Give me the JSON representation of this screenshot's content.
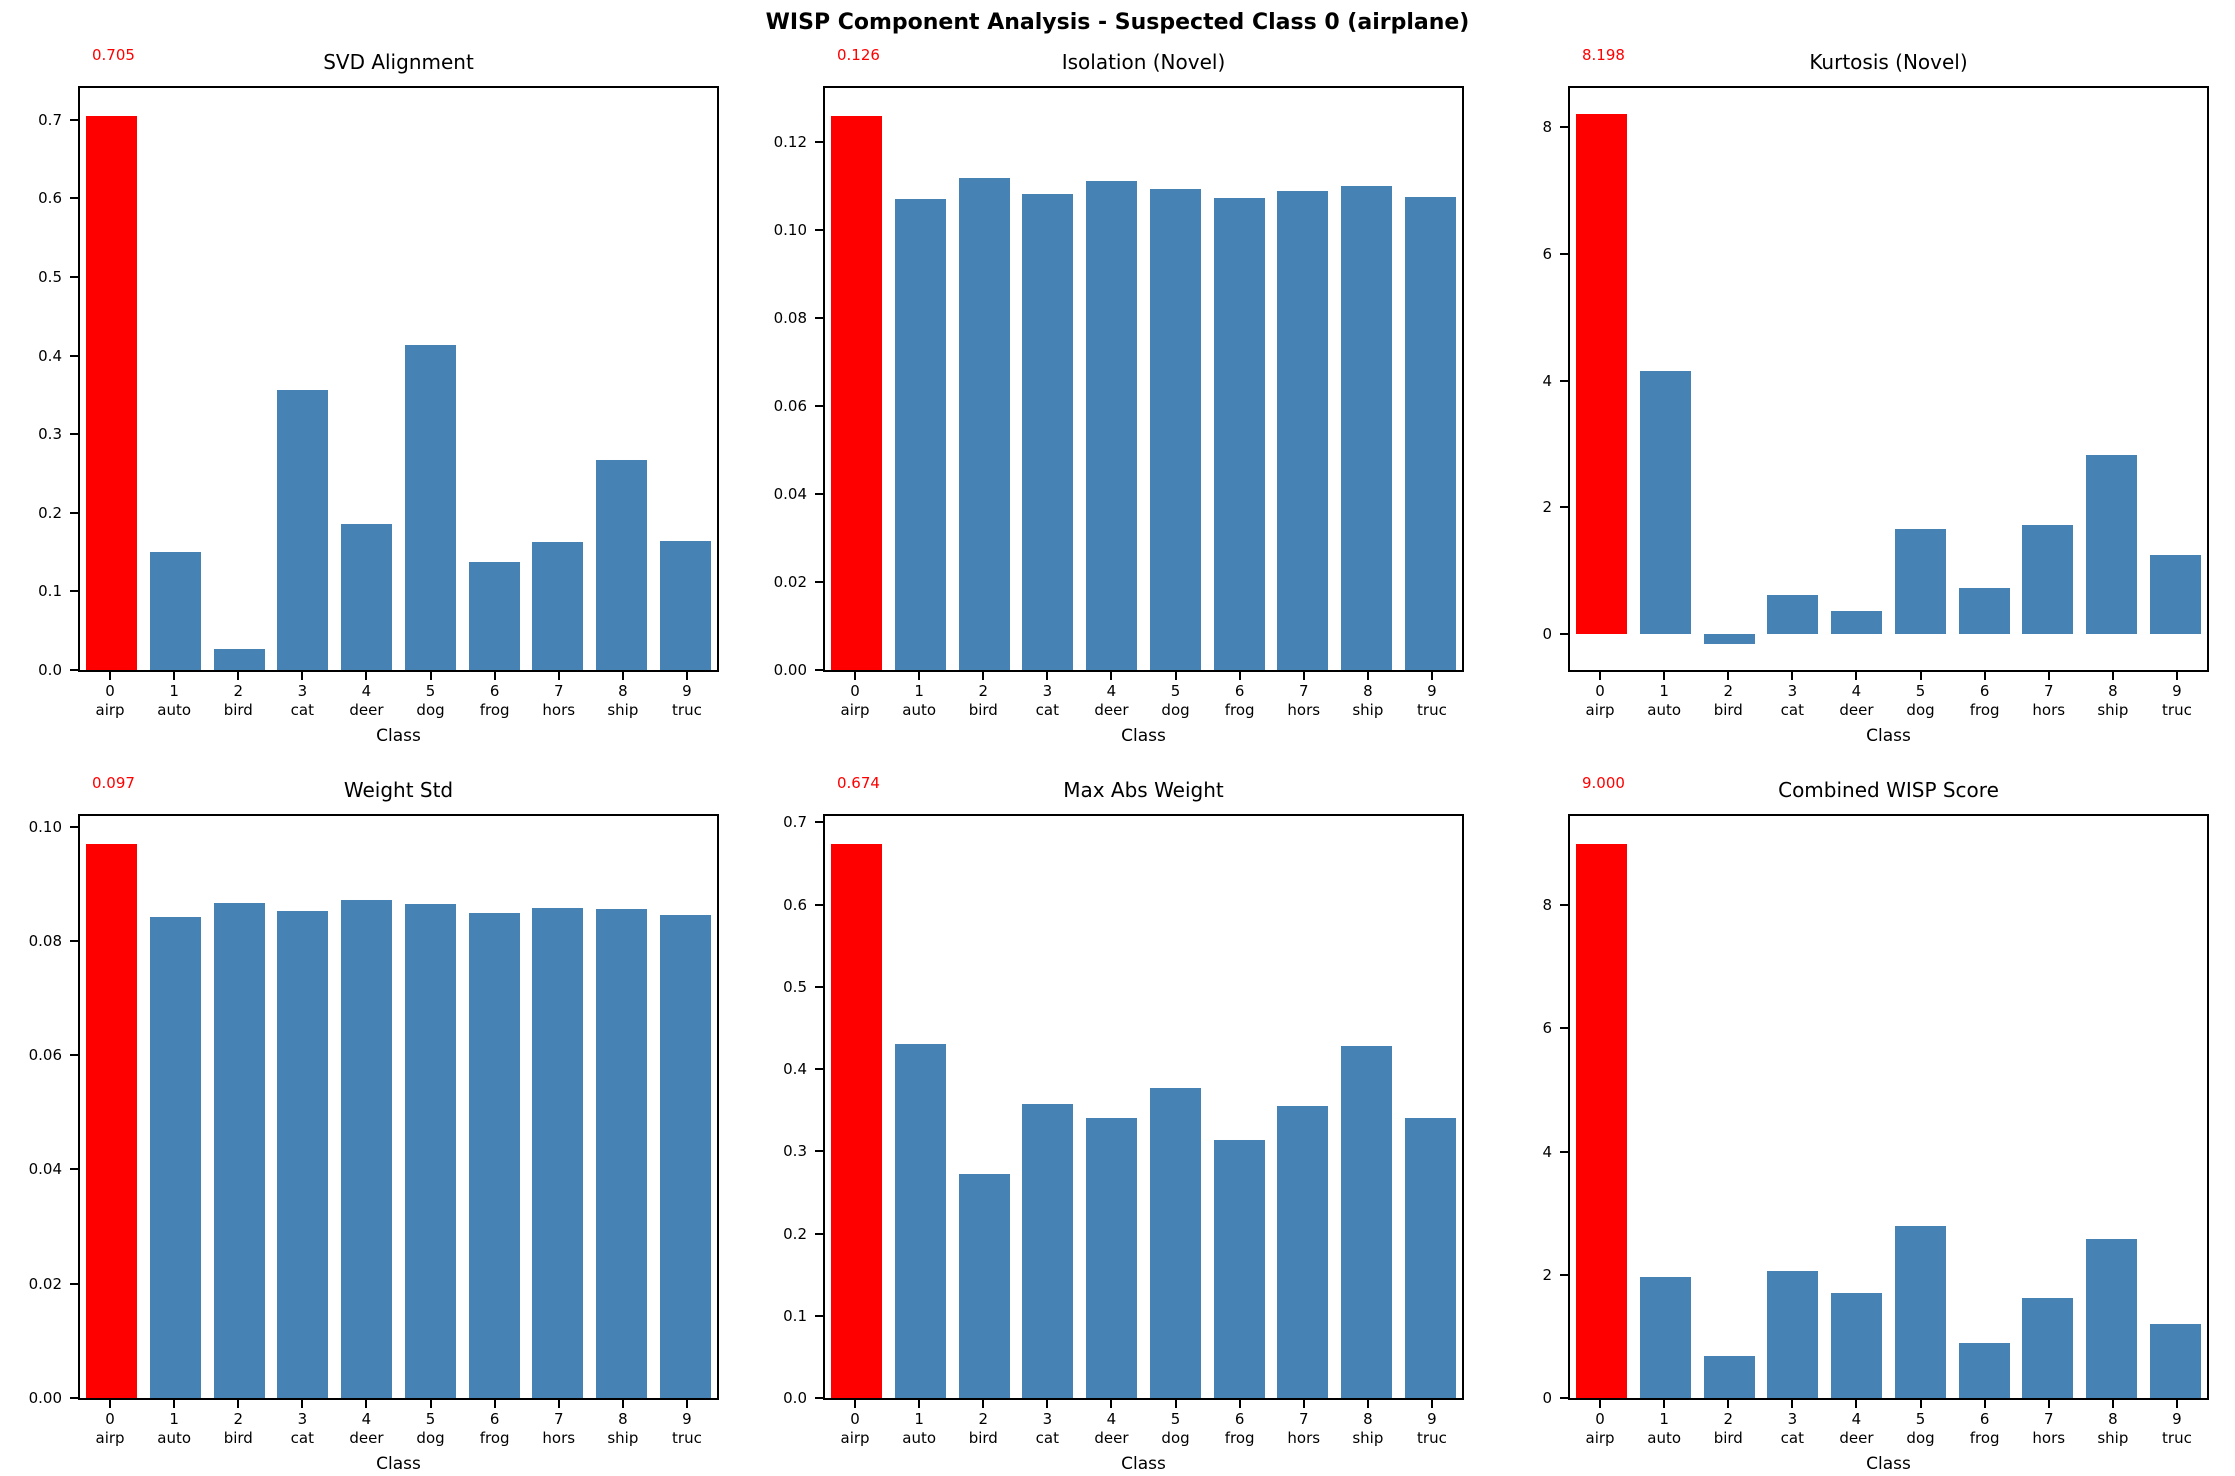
{
  "figure": {
    "suptitle": "WISP Component Analysis - Suspected Class 0 (airplane)",
    "background": "#ffffff",
    "bar_color": "#4682b4",
    "highlight_color": "#ff0000",
    "annotation_color": "#ff0000",
    "axis_color": "#000000",
    "suspected_class": "0 (airplane)"
  },
  "classes": [
    {
      "id": "0",
      "name": "airp"
    },
    {
      "id": "1",
      "name": "auto"
    },
    {
      "id": "2",
      "name": "bird"
    },
    {
      "id": "3",
      "name": "cat"
    },
    {
      "id": "4",
      "name": "deer"
    },
    {
      "id": "5",
      "name": "dog"
    },
    {
      "id": "6",
      "name": "frog"
    },
    {
      "id": "7",
      "name": "hors"
    },
    {
      "id": "8",
      "name": "ship"
    },
    {
      "id": "9",
      "name": "truc"
    }
  ],
  "chart_data": [
    {
      "type": "bar",
      "key": "svd-alignment",
      "title": "SVD Alignment",
      "annotation": "0.705",
      "xlabel": "Class",
      "categories": [
        "0",
        "1",
        "2",
        "3",
        "4",
        "5",
        "6",
        "7",
        "8",
        "9"
      ],
      "category_names": [
        "airp",
        "auto",
        "bird",
        "cat",
        "deer",
        "dog",
        "frog",
        "hors",
        "ship",
        "truc"
      ],
      "values": [
        0.705,
        0.15,
        0.027,
        0.356,
        0.186,
        0.413,
        0.137,
        0.163,
        0.267,
        0.164
      ],
      "highlight_index": 0,
      "ylim": [
        0,
        0.7403
      ],
      "yticks": [
        {
          "value": 0.0,
          "label": "0.0"
        },
        {
          "value": 0.1,
          "label": "0.1"
        },
        {
          "value": 0.2,
          "label": "0.2"
        },
        {
          "value": 0.3,
          "label": "0.3"
        },
        {
          "value": 0.4,
          "label": "0.4"
        },
        {
          "value": 0.5,
          "label": "0.5"
        },
        {
          "value": 0.6,
          "label": "0.6"
        },
        {
          "value": 0.7,
          "label": "0.7"
        }
      ],
      "grid": false,
      "legend": null
    },
    {
      "type": "bar",
      "key": "isolation-novel",
      "title": "Isolation (Novel)",
      "annotation": "0.126",
      "xlabel": "Class",
      "categories": [
        "0",
        "1",
        "2",
        "3",
        "4",
        "5",
        "6",
        "7",
        "8",
        "9"
      ],
      "category_names": [
        "airp",
        "auto",
        "bird",
        "cat",
        "deer",
        "dog",
        "frog",
        "hors",
        "ship",
        "truc"
      ],
      "values": [
        0.126,
        0.107,
        0.1118,
        0.1082,
        0.1112,
        0.1093,
        0.1073,
        0.109,
        0.11,
        0.1076
      ],
      "highlight_index": 0,
      "ylim": [
        0,
        0.1323
      ],
      "yticks": [
        {
          "value": 0.0,
          "label": "0.00"
        },
        {
          "value": 0.02,
          "label": "0.02"
        },
        {
          "value": 0.04,
          "label": "0.04"
        },
        {
          "value": 0.06,
          "label": "0.06"
        },
        {
          "value": 0.08,
          "label": "0.08"
        },
        {
          "value": 0.1,
          "label": "0.10"
        },
        {
          "value": 0.12,
          "label": "0.12"
        }
      ],
      "grid": false,
      "legend": null
    },
    {
      "type": "bar",
      "key": "kurtosis-novel",
      "title": "Kurtosis (Novel)",
      "annotation": "8.198",
      "xlabel": "Class",
      "categories": [
        "0",
        "1",
        "2",
        "3",
        "4",
        "5",
        "6",
        "7",
        "8",
        "9"
      ],
      "category_names": [
        "airp",
        "auto",
        "bird",
        "cat",
        "deer",
        "dog",
        "frog",
        "hors",
        "ship",
        "truc"
      ],
      "values": [
        8.198,
        4.15,
        -0.15,
        0.62,
        0.36,
        1.66,
        0.72,
        1.72,
        2.82,
        1.25
      ],
      "highlight_index": 0,
      "ylim": [
        -0.567,
        8.615
      ],
      "yticks": [
        {
          "value": 0,
          "label": "0"
        },
        {
          "value": 2,
          "label": "2"
        },
        {
          "value": 4,
          "label": "4"
        },
        {
          "value": 6,
          "label": "6"
        },
        {
          "value": 8,
          "label": "8"
        }
      ],
      "grid": false,
      "legend": null
    },
    {
      "type": "bar",
      "key": "weight-std",
      "title": "Weight Std",
      "annotation": "0.097",
      "xlabel": "Class",
      "categories": [
        "0",
        "1",
        "2",
        "3",
        "4",
        "5",
        "6",
        "7",
        "8",
        "9"
      ],
      "category_names": [
        "airp",
        "auto",
        "bird",
        "cat",
        "deer",
        "dog",
        "frog",
        "hors",
        "ship",
        "truc"
      ],
      "values": [
        0.097,
        0.0842,
        0.0866,
        0.0852,
        0.0872,
        0.0864,
        0.0849,
        0.0857,
        0.0855,
        0.0846
      ],
      "highlight_index": 0,
      "ylim": [
        0,
        0.10185
      ],
      "yticks": [
        {
          "value": 0.0,
          "label": "0.00"
        },
        {
          "value": 0.02,
          "label": "0.02"
        },
        {
          "value": 0.04,
          "label": "0.04"
        },
        {
          "value": 0.06,
          "label": "0.06"
        },
        {
          "value": 0.08,
          "label": "0.08"
        },
        {
          "value": 0.1,
          "label": "0.10"
        }
      ],
      "grid": false,
      "legend": null
    },
    {
      "type": "bar",
      "key": "max-abs-weight",
      "title": "Max Abs Weight",
      "annotation": "0.674",
      "xlabel": "Class",
      "categories": [
        "0",
        "1",
        "2",
        "3",
        "4",
        "5",
        "6",
        "7",
        "8",
        "9"
      ],
      "category_names": [
        "airp",
        "auto",
        "bird",
        "cat",
        "deer",
        "dog",
        "frog",
        "hors",
        "ship",
        "truc"
      ],
      "values": [
        0.674,
        0.431,
        0.272,
        0.358,
        0.341,
        0.377,
        0.314,
        0.355,
        0.428,
        0.34
      ],
      "highlight_index": 0,
      "ylim": [
        0,
        0.7077
      ],
      "yticks": [
        {
          "value": 0.0,
          "label": "0.0"
        },
        {
          "value": 0.1,
          "label": "0.1"
        },
        {
          "value": 0.2,
          "label": "0.2"
        },
        {
          "value": 0.3,
          "label": "0.3"
        },
        {
          "value": 0.4,
          "label": "0.4"
        },
        {
          "value": 0.5,
          "label": "0.5"
        },
        {
          "value": 0.6,
          "label": "0.6"
        },
        {
          "value": 0.7,
          "label": "0.7"
        }
      ],
      "grid": false,
      "legend": null
    },
    {
      "type": "bar",
      "key": "combined-wisp-score",
      "title": "Combined WISP Score",
      "annotation": "9.000",
      "xlabel": "Class",
      "categories": [
        "0",
        "1",
        "2",
        "3",
        "4",
        "5",
        "6",
        "7",
        "8",
        "9"
      ],
      "category_names": [
        "airp",
        "auto",
        "bird",
        "cat",
        "deer",
        "dog",
        "frog",
        "hors",
        "ship",
        "truc"
      ],
      "values": [
        9.0,
        1.96,
        0.69,
        2.06,
        1.7,
        2.8,
        0.89,
        1.62,
        2.59,
        1.2
      ],
      "highlight_index": 0,
      "ylim": [
        0,
        9.45
      ],
      "yticks": [
        {
          "value": 0,
          "label": "0"
        },
        {
          "value": 2,
          "label": "2"
        },
        {
          "value": 4,
          "label": "4"
        },
        {
          "value": 6,
          "label": "6"
        },
        {
          "value": 8,
          "label": "8"
        }
      ],
      "grid": false,
      "legend": null
    }
  ]
}
